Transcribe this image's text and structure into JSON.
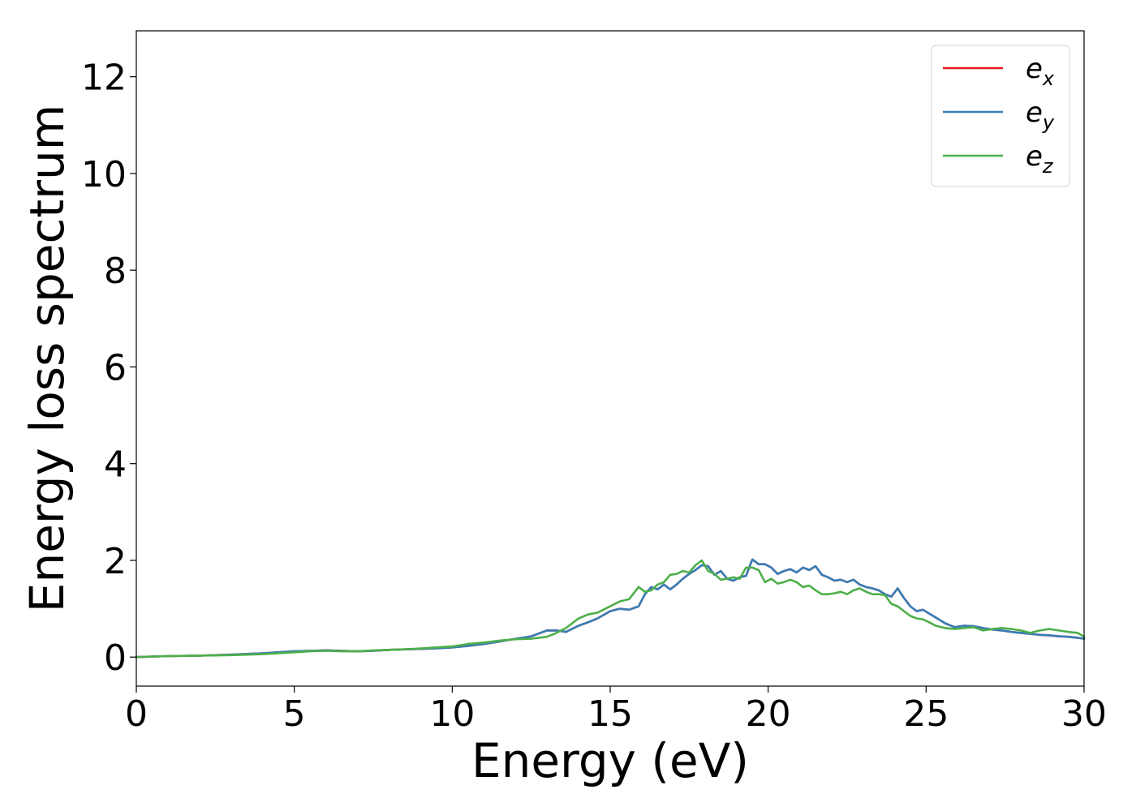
{
  "chart_data": {
    "type": "line",
    "title": "",
    "xlabel": "Energy (eV)",
    "ylabel": "Energy loss spectrum",
    "xlim": [
      0,
      30
    ],
    "ylim": [
      -0.6,
      12.95
    ],
    "xticks": [
      0,
      5,
      10,
      15,
      20,
      25,
      30
    ],
    "yticks": [
      0,
      2,
      4,
      6,
      8,
      10,
      12
    ],
    "grid": false,
    "legend_position": "top-right",
    "legend_entries": [
      {
        "base": "e",
        "sub": "x",
        "color": "#e41a1c"
      },
      {
        "base": "e",
        "sub": "y",
        "color": "#377eb8"
      },
      {
        "base": "e",
        "sub": "z",
        "color": "#4daf4a"
      }
    ],
    "series": [
      {
        "name": "e_x",
        "color": "#e41a1c",
        "x": [
          0,
          1,
          2,
          3,
          4,
          4.5,
          5,
          5.5,
          6,
          6.5,
          7,
          7.5,
          8,
          8.5,
          9,
          9.5,
          10,
          10.5,
          11,
          11.5,
          12,
          12.5,
          13,
          13.3,
          13.6,
          14,
          14.3,
          14.6,
          15,
          15.3,
          15.6,
          15.9,
          16.1,
          16.3,
          16.5,
          16.7,
          16.9,
          17.1,
          17.3,
          17.5,
          17.7,
          17.9,
          18.1,
          18.3,
          18.5,
          18.7,
          18.9,
          19.1,
          19.3,
          19.5,
          19.7,
          19.9,
          20.1,
          20.3,
          20.5,
          20.7,
          20.9,
          21.1,
          21.3,
          21.5,
          21.7,
          21.9,
          22.1,
          22.3,
          22.5,
          22.7,
          22.9,
          23.1,
          23.3,
          23.5,
          23.7,
          23.9,
          24.1,
          24.3,
          24.5,
          24.7,
          24.9,
          25.1,
          25.3,
          25.6,
          25.9,
          26.2,
          26.5,
          26.8,
          27.1,
          27.4,
          27.7,
          28,
          28.3,
          28.6,
          28.9,
          29.2,
          29.5,
          29.8,
          30
        ],
        "y": [
          0,
          0.02,
          0.03,
          0.05,
          0.08,
          0.1,
          0.12,
          0.13,
          0.14,
          0.13,
          0.12,
          0.13,
          0.15,
          0.16,
          0.17,
          0.18,
          0.2,
          0.23,
          0.27,
          0.32,
          0.38,
          0.43,
          0.55,
          0.55,
          0.52,
          0.65,
          0.72,
          0.8,
          0.95,
          1.0,
          0.98,
          1.05,
          1.3,
          1.45,
          1.4,
          1.5,
          1.4,
          1.5,
          1.62,
          1.72,
          1.8,
          1.9,
          1.88,
          1.7,
          1.78,
          1.62,
          1.58,
          1.65,
          1.68,
          2.02,
          1.92,
          1.92,
          1.85,
          1.72,
          1.78,
          1.82,
          1.75,
          1.85,
          1.8,
          1.88,
          1.7,
          1.65,
          1.58,
          1.6,
          1.55,
          1.6,
          1.5,
          1.45,
          1.42,
          1.38,
          1.3,
          1.25,
          1.42,
          1.22,
          1.05,
          0.95,
          0.98,
          0.9,
          0.82,
          0.7,
          0.62,
          0.65,
          0.64,
          0.6,
          0.57,
          0.55,
          0.52,
          0.5,
          0.48,
          0.46,
          0.45,
          0.43,
          0.42,
          0.4,
          0.38
        ]
      },
      {
        "name": "e_y",
        "color": "#377eb8",
        "x": [
          0,
          1,
          2,
          3,
          4,
          4.5,
          5,
          5.5,
          6,
          6.5,
          7,
          7.5,
          8,
          8.5,
          9,
          9.5,
          10,
          10.5,
          11,
          11.5,
          12,
          12.5,
          13,
          13.3,
          13.6,
          14,
          14.3,
          14.6,
          15,
          15.3,
          15.6,
          15.9,
          16.1,
          16.3,
          16.5,
          16.7,
          16.9,
          17.1,
          17.3,
          17.5,
          17.7,
          17.9,
          18.1,
          18.3,
          18.5,
          18.7,
          18.9,
          19.1,
          19.3,
          19.5,
          19.7,
          19.9,
          20.1,
          20.3,
          20.5,
          20.7,
          20.9,
          21.1,
          21.3,
          21.5,
          21.7,
          21.9,
          22.1,
          22.3,
          22.5,
          22.7,
          22.9,
          23.1,
          23.3,
          23.5,
          23.7,
          23.9,
          24.1,
          24.3,
          24.5,
          24.7,
          24.9,
          25.1,
          25.3,
          25.6,
          25.9,
          26.2,
          26.5,
          26.8,
          27.1,
          27.4,
          27.7,
          28,
          28.3,
          28.6,
          28.9,
          29.2,
          29.5,
          29.8,
          30
        ],
        "y": [
          0,
          0.02,
          0.03,
          0.05,
          0.08,
          0.1,
          0.12,
          0.13,
          0.14,
          0.13,
          0.12,
          0.13,
          0.15,
          0.16,
          0.17,
          0.18,
          0.2,
          0.23,
          0.27,
          0.32,
          0.38,
          0.43,
          0.55,
          0.55,
          0.52,
          0.65,
          0.72,
          0.8,
          0.95,
          1.0,
          0.98,
          1.05,
          1.3,
          1.45,
          1.4,
          1.5,
          1.4,
          1.5,
          1.62,
          1.72,
          1.8,
          1.9,
          1.88,
          1.7,
          1.78,
          1.62,
          1.58,
          1.65,
          1.68,
          2.02,
          1.92,
          1.92,
          1.85,
          1.72,
          1.78,
          1.82,
          1.75,
          1.85,
          1.8,
          1.88,
          1.7,
          1.65,
          1.58,
          1.6,
          1.55,
          1.6,
          1.5,
          1.45,
          1.42,
          1.38,
          1.3,
          1.25,
          1.42,
          1.22,
          1.05,
          0.95,
          0.98,
          0.9,
          0.82,
          0.7,
          0.62,
          0.65,
          0.64,
          0.6,
          0.57,
          0.55,
          0.52,
          0.5,
          0.48,
          0.46,
          0.45,
          0.43,
          0.42,
          0.4,
          0.38
        ]
      },
      {
        "name": "e_z",
        "color": "#4daf4a",
        "x": [
          0,
          1,
          2,
          3,
          4,
          4.5,
          5,
          5.5,
          6,
          6.5,
          7,
          7.5,
          8,
          8.5,
          9,
          9.5,
          10,
          10.5,
          11,
          11.5,
          12,
          12.5,
          13,
          13.3,
          13.6,
          14,
          14.3,
          14.6,
          15,
          15.3,
          15.6,
          15.9,
          16.1,
          16.3,
          16.5,
          16.7,
          16.9,
          17.1,
          17.3,
          17.5,
          17.7,
          17.9,
          18.1,
          18.3,
          18.5,
          18.7,
          18.9,
          19.1,
          19.3,
          19.5,
          19.7,
          19.9,
          20.1,
          20.3,
          20.5,
          20.7,
          20.9,
          21.1,
          21.3,
          21.5,
          21.7,
          21.9,
          22.1,
          22.3,
          22.5,
          22.7,
          22.9,
          23.1,
          23.3,
          23.5,
          23.7,
          23.9,
          24.1,
          24.3,
          24.5,
          24.7,
          24.9,
          25.1,
          25.3,
          25.6,
          25.9,
          26.2,
          26.5,
          26.8,
          27.1,
          27.4,
          27.7,
          28,
          28.3,
          28.6,
          28.9,
          29.2,
          29.5,
          29.8,
          30
        ],
        "y": [
          0,
          0.02,
          0.03,
          0.04,
          0.06,
          0.08,
          0.1,
          0.12,
          0.13,
          0.12,
          0.12,
          0.14,
          0.15,
          0.16,
          0.18,
          0.2,
          0.22,
          0.27,
          0.3,
          0.34,
          0.37,
          0.38,
          0.42,
          0.5,
          0.6,
          0.8,
          0.88,
          0.92,
          1.05,
          1.15,
          1.2,
          1.45,
          1.35,
          1.38,
          1.5,
          1.55,
          1.7,
          1.72,
          1.78,
          1.75,
          1.9,
          2.0,
          1.78,
          1.72,
          1.6,
          1.62,
          1.65,
          1.62,
          1.85,
          1.85,
          1.8,
          1.55,
          1.62,
          1.52,
          1.55,
          1.6,
          1.55,
          1.45,
          1.48,
          1.38,
          1.3,
          1.3,
          1.32,
          1.35,
          1.3,
          1.38,
          1.42,
          1.35,
          1.3,
          1.3,
          1.28,
          1.1,
          1.05,
          0.95,
          0.85,
          0.8,
          0.78,
          0.72,
          0.65,
          0.6,
          0.58,
          0.6,
          0.62,
          0.55,
          0.58,
          0.6,
          0.58,
          0.55,
          0.5,
          0.55,
          0.58,
          0.55,
          0.52,
          0.5,
          0.42
        ]
      }
    ]
  }
}
